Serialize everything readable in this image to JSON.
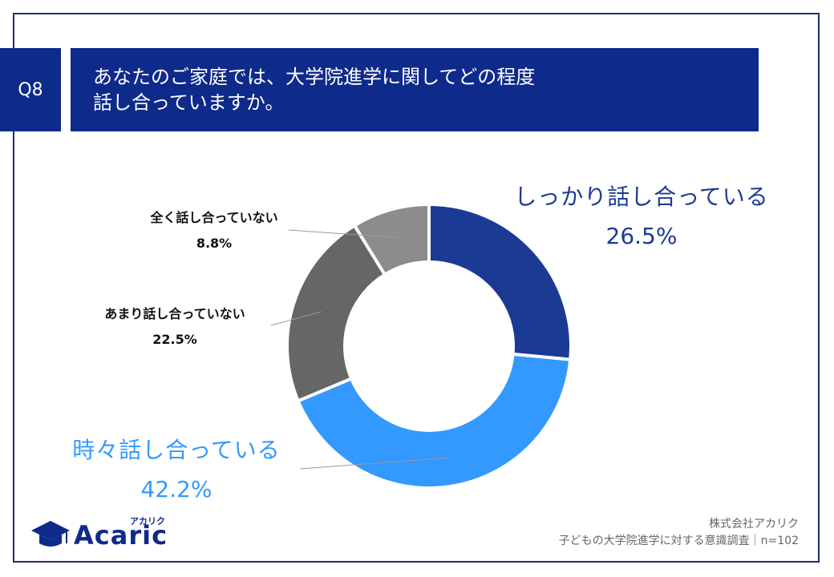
{
  "question": {
    "number": "Q8",
    "title_line1": "あなたのご家庭では、大学院進学に関してどの程度",
    "title_line2": "話し合っていますか。"
  },
  "chart_data": {
    "type": "pie",
    "donut": true,
    "categories": [
      "しっかり話し合っている",
      "時々話し合っている",
      "あまり話し合っていない",
      "全く話し合っていない"
    ],
    "values": [
      26.5,
      42.2,
      22.5,
      8.8
    ],
    "value_labels": [
      "26.5%",
      "42.2%",
      "22.5%",
      "8.8%"
    ],
    "colors": [
      "#1a3a94",
      "#3399ff",
      "#666666",
      "#8c8c8c"
    ],
    "start": "12 o'clock, clockwise"
  },
  "labels_color": {
    "big_1": "#1a3a94",
    "big_2": "#3399ff"
  },
  "logo": {
    "word": "Acaric",
    "kana": "アカリク"
  },
  "source": {
    "company": "株式会社アカリク",
    "survey": "子どもの大学院進学に対する意識調査｜n=102"
  }
}
